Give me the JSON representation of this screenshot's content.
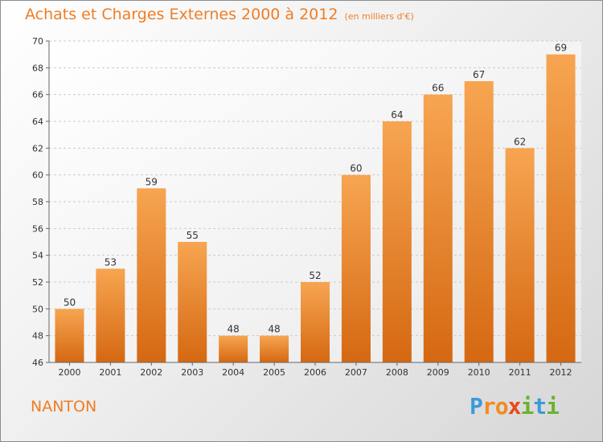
{
  "header": {
    "title": "Achats et Charges Externes 2000 à 2012",
    "unit": "(en milliers d'€)"
  },
  "footer": {
    "town": "NANTON",
    "logo": [
      "P",
      "r",
      "o",
      "x",
      "i",
      "t",
      "i"
    ],
    "logo_colors": [
      "#3a9ad9",
      "#f28a1e",
      "#f28a1e",
      "#e84a1b",
      "#6bb232",
      "#3a9ad9",
      "#6bb232"
    ]
  },
  "colors": {
    "bar_top": "#f7a551",
    "bar_bottom": "#d56812",
    "title": "#ef7d25"
  },
  "chart_data": {
    "type": "bar",
    "categories": [
      "2000",
      "2001",
      "2002",
      "2003",
      "2004",
      "2005",
      "2006",
      "2007",
      "2008",
      "2009",
      "2010",
      "2011",
      "2012"
    ],
    "values": [
      50,
      53,
      59,
      55,
      48,
      48,
      52,
      60,
      64,
      66,
      67,
      62,
      69
    ],
    "ylim": [
      46,
      70
    ],
    "yticks": [
      46,
      48,
      50,
      52,
      54,
      56,
      58,
      60,
      62,
      64,
      66,
      68,
      70
    ],
    "grid": true
  }
}
